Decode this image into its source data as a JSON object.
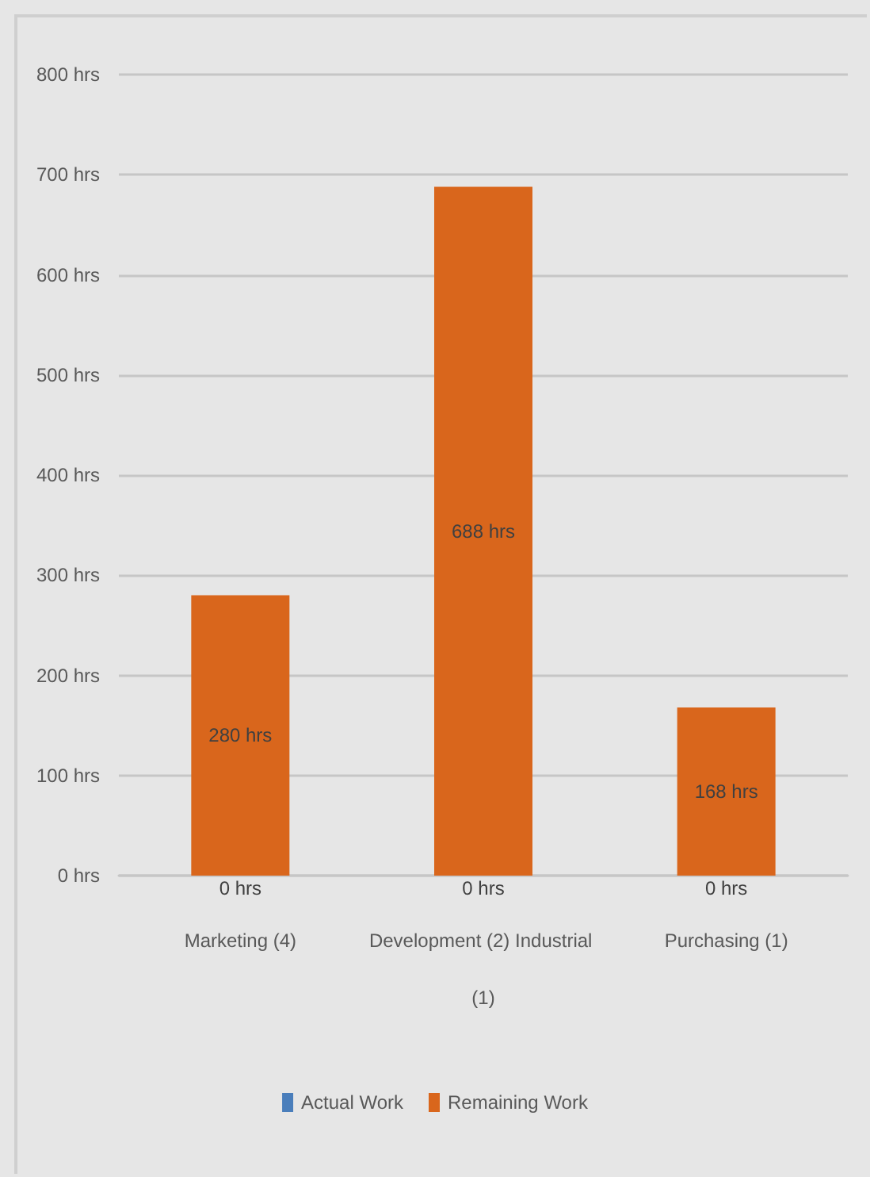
{
  "chart_data": {
    "type": "bar",
    "stacked": true,
    "categories": [
      "Marketing (4)",
      "Development (2) Industrial (1)",
      "Purchasing (1)"
    ],
    "series": [
      {
        "name": "Actual Work",
        "color": "#4a7ebb",
        "values": [
          0,
          0,
          0
        ],
        "value_labels": [
          "0 hrs",
          "0 hrs",
          "0 hrs"
        ]
      },
      {
        "name": "Remaining Work",
        "color": "#d9661c",
        "values": [
          280,
          688,
          168
        ],
        "value_labels": [
          "280 hrs",
          "688 hrs",
          "168 hrs"
        ]
      }
    ],
    "ylim": [
      0,
      800
    ],
    "yticks": [
      {
        "value": 0,
        "label": "0 hrs"
      },
      {
        "value": 100,
        "label": "100 hrs"
      },
      {
        "value": 200,
        "label": "200 hrs"
      },
      {
        "value": 300,
        "label": "300 hrs"
      },
      {
        "value": 400,
        "label": "400 hrs"
      },
      {
        "value": 500,
        "label": "500 hrs"
      },
      {
        "value": 600,
        "label": "600 hrs"
      },
      {
        "value": 700,
        "label": "700 hrs"
      },
      {
        "value": 800,
        "label": "800 hrs"
      }
    ],
    "grid": "y",
    "legend": "bottom"
  }
}
